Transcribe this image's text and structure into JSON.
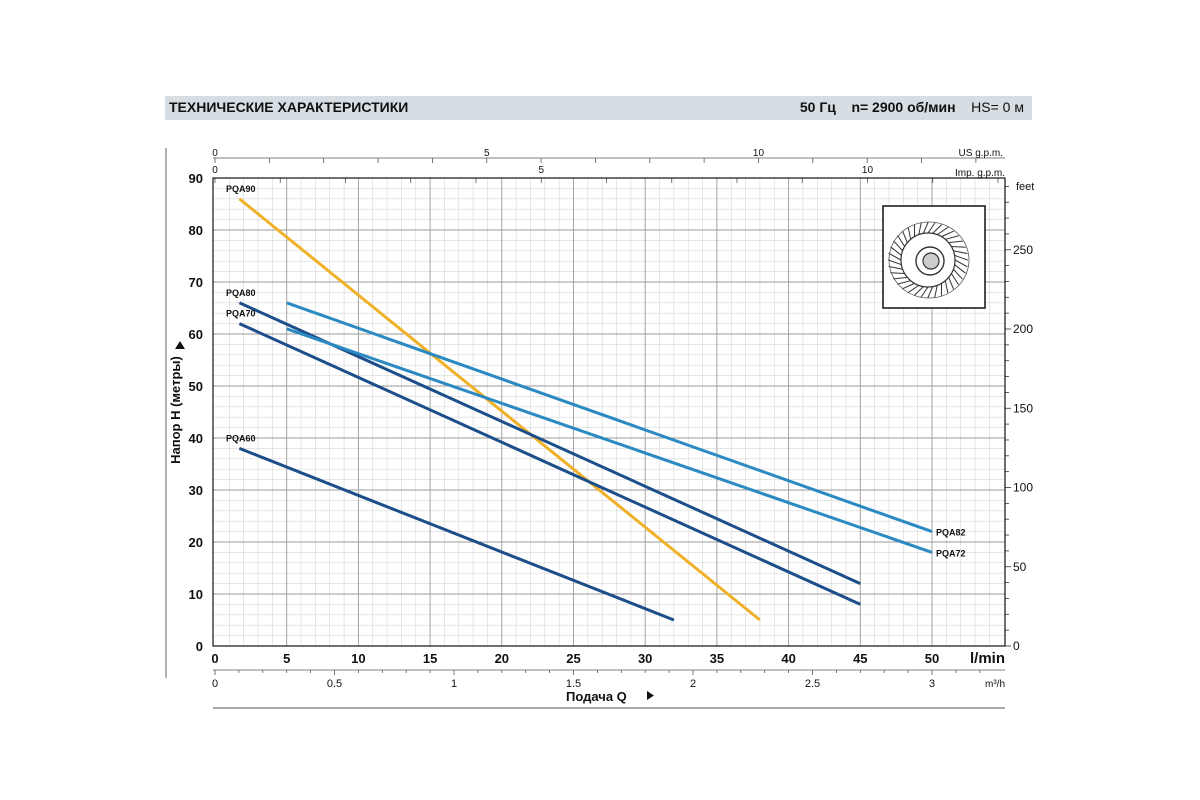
{
  "header": {
    "title": "ТЕХНИЧЕСКИЕ ХАРАКТЕРИСТИКИ",
    "freq": "50 Гц",
    "speed": "n= 2900 об/мин",
    "hs": "HS= 0 м"
  },
  "chart_data": {
    "type": "line",
    "xlabel": "Подача Q",
    "ylabel": "Напор H (метры)",
    "x_unit": "l/min",
    "xlim": [
      0,
      55
    ],
    "ylim": [
      0,
      90
    ],
    "x_ticks": [
      0,
      5,
      10,
      15,
      20,
      25,
      30,
      35,
      40,
      45,
      50
    ],
    "y_ticks": [
      0,
      10,
      20,
      30,
      40,
      50,
      60,
      70,
      80,
      90
    ],
    "feet_axis": {
      "unit": "feet",
      "ticks": [
        0,
        50,
        100,
        150,
        200,
        250
      ]
    },
    "us_gpm_axis": {
      "unit": "US g.p.m.",
      "ticks": [
        0,
        5,
        10
      ]
    },
    "imp_gpm_axis": {
      "unit": "Imp. g.p.m.",
      "ticks": [
        0,
        5,
        10
      ]
    },
    "m3h_axis": {
      "unit": "m³/h",
      "ticks": [
        "0",
        "0.5",
        "1",
        "1.5",
        "2",
        "2.5",
        "3"
      ]
    },
    "series": [
      {
        "name": "PQA90",
        "color": "#f0b128",
        "x": [
          1.7,
          38
        ],
        "y": [
          86,
          5
        ]
      },
      {
        "name": "PQA80",
        "color": "#1c4f8a",
        "x": [
          1.7,
          45
        ],
        "y": [
          66,
          12
        ]
      },
      {
        "name": "PQA70",
        "color": "#1c4f8a",
        "x": [
          1.7,
          45
        ],
        "y": [
          62,
          8
        ]
      },
      {
        "name": "PQA60",
        "color": "#1c4f8a",
        "x": [
          1.7,
          32
        ],
        "y": [
          38,
          5
        ]
      },
      {
        "name": "PQA82",
        "color": "#2b8ac2",
        "x": [
          5,
          50
        ],
        "y": [
          66,
          22
        ]
      },
      {
        "name": "PQA72",
        "color": "#2b8ac2",
        "x": [
          5,
          50
        ],
        "y": [
          61,
          18
        ]
      }
    ]
  }
}
